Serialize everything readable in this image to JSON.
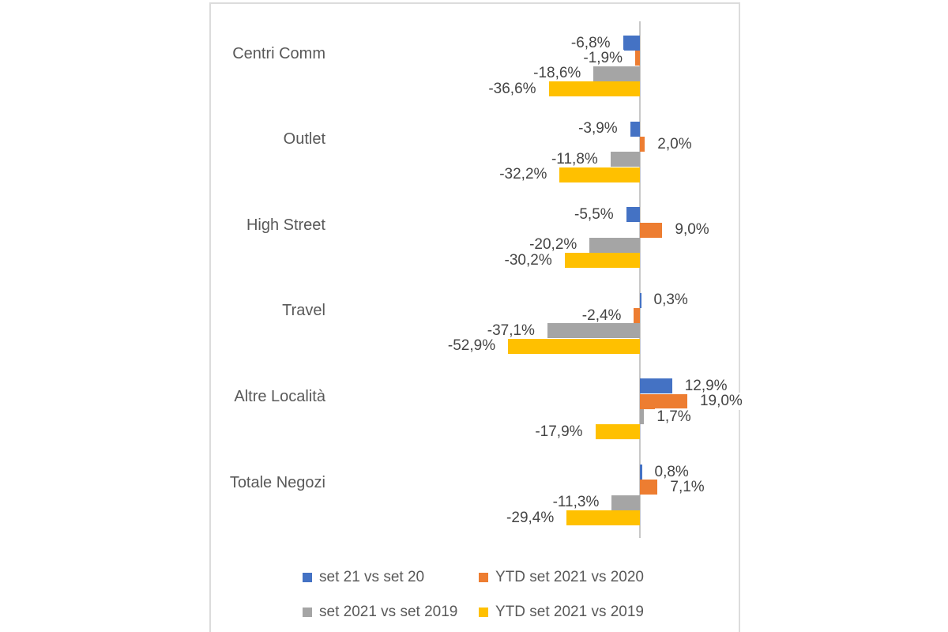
{
  "chart_data": {
    "type": "bar",
    "orientation": "horizontal",
    "title": "",
    "categories": [
      "Centri Comm",
      "Outlet",
      "High Street",
      "Travel",
      "Altre Località",
      "Totale Negozi"
    ],
    "series": [
      {
        "name": "set 21 vs set 20",
        "color": "#4472C4",
        "values": [
          -6.8,
          -3.9,
          -5.5,
          0.3,
          12.9,
          0.8
        ],
        "labels": [
          "-6,8%",
          "-3,9%",
          "-5,5%",
          "0,3%",
          "12,9%",
          "0,8%"
        ]
      },
      {
        "name": "YTD set 2021 vs 2020",
        "color": "#ED7D31",
        "values": [
          -1.9,
          2.0,
          9.0,
          -2.4,
          19.0,
          7.1
        ],
        "labels": [
          "-1,9%",
          "2,0%",
          "9,0%",
          "-2,4%",
          "19,0%",
          "7,1%"
        ]
      },
      {
        "name": "set 2021 vs set 2019",
        "color": "#A5A5A5",
        "values": [
          -18.6,
          -11.8,
          -20.2,
          -37.1,
          1.7,
          -11.3
        ],
        "labels": [
          "-18,6%",
          "-11,8%",
          "-20,2%",
          "-37,1%",
          "1,7%",
          "-11,3%"
        ]
      },
      {
        "name": "YTD set 2021 vs 2019",
        "color": "#FFC000",
        "values": [
          -36.6,
          -32.2,
          -30.2,
          -52.9,
          -17.9,
          -29.4
        ],
        "labels": [
          "-36,6%",
          "-32,2%",
          "-30,2%",
          "-52,9%",
          "-17,9%",
          "-29,4%"
        ]
      }
    ],
    "value_axis": {
      "zero_line": true,
      "gridlines": "off",
      "tick_labels": "none"
    },
    "legend_position": "bottom",
    "legend_rows": [
      [
        "set 21 vs set 20",
        "YTD set 2021 vs 2020"
      ],
      [
        "set 2021 vs set 2019",
        "YTD set 2021 vs 2019"
      ]
    ]
  }
}
